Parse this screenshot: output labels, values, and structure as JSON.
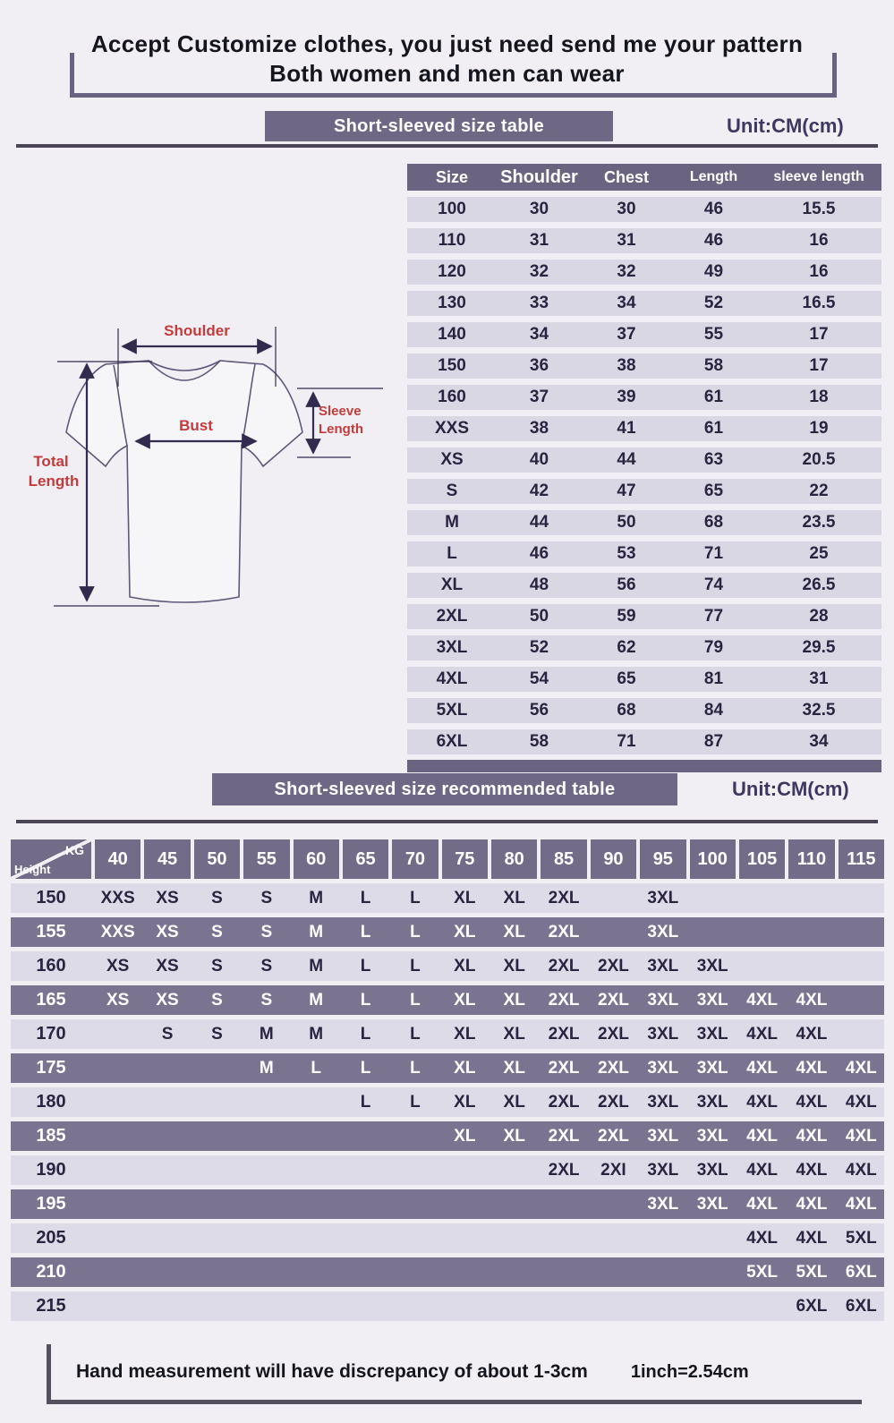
{
  "header": {
    "title_line1": "Accept Customize clothes, you just need send me your pattern",
    "title_line2": "Both women and men can wear"
  },
  "size_table": {
    "banner": "Short-sleeved size  table",
    "unit": "Unit:CM(cm)",
    "headers": [
      "Size",
      "Shoulder",
      "Chest",
      "Length",
      "sleeve length"
    ],
    "rows": [
      [
        "100",
        "30",
        "30",
        "46",
        "15.5"
      ],
      [
        "110",
        "31",
        "31",
        "46",
        "16"
      ],
      [
        "120",
        "32",
        "32",
        "49",
        "16"
      ],
      [
        "130",
        "33",
        "34",
        "52",
        "16.5"
      ],
      [
        "140",
        "34",
        "37",
        "55",
        "17"
      ],
      [
        "150",
        "36",
        "38",
        "58",
        "17"
      ],
      [
        "160",
        "37",
        "39",
        "61",
        "18"
      ],
      [
        "XXS",
        "38",
        "41",
        "61",
        "19"
      ],
      [
        "XS",
        "40",
        "44",
        "63",
        "20.5"
      ],
      [
        "S",
        "42",
        "47",
        "65",
        "22"
      ],
      [
        "M",
        "44",
        "50",
        "68",
        "23.5"
      ],
      [
        "L",
        "46",
        "53",
        "71",
        "25"
      ],
      [
        "XL",
        "48",
        "56",
        "74",
        "26.5"
      ],
      [
        "2XL",
        "50",
        "59",
        "77",
        "28"
      ],
      [
        "3XL",
        "52",
        "62",
        "79",
        "29.5"
      ],
      [
        "4XL",
        "54",
        "65",
        "81",
        "31"
      ],
      [
        "5XL",
        "56",
        "68",
        "84",
        "32.5"
      ],
      [
        "6XL",
        "58",
        "71",
        "87",
        "34"
      ]
    ]
  },
  "diagram": {
    "shoulder_label": "Shoulder",
    "bust_label": "Bust",
    "sleeve_label_1": "Sleeve",
    "sleeve_label_2": "Length",
    "total_label_1": "Total",
    "total_label_2": "Length"
  },
  "recommended_table": {
    "banner": "Short-sleeved size recommended table",
    "unit": "Unit:CM(cm)",
    "corner": {
      "top": "KG",
      "bottom": "Height"
    },
    "weights": [
      "40",
      "45",
      "50",
      "55",
      "60",
      "65",
      "70",
      "75",
      "80",
      "85",
      "90",
      "95",
      "100",
      "105",
      "110",
      "115"
    ],
    "rows": [
      {
        "height": "150",
        "cells": [
          "XXS",
          "XS",
          "S",
          "S",
          "M",
          "L",
          "L",
          "XL",
          "XL",
          "2XL",
          "",
          "3XL",
          "",
          "",
          "",
          ""
        ]
      },
      {
        "height": "155",
        "cells": [
          "XXS",
          "XS",
          "S",
          "S",
          "M",
          "L",
          "L",
          "XL",
          "XL",
          "2XL",
          "",
          "3XL",
          "",
          "",
          "",
          ""
        ]
      },
      {
        "height": "160",
        "cells": [
          "XS",
          "XS",
          "S",
          "S",
          "M",
          "L",
          "L",
          "XL",
          "XL",
          "2XL",
          "2XL",
          "3XL",
          "3XL",
          "",
          "",
          ""
        ]
      },
      {
        "height": "165",
        "cells": [
          "XS",
          "XS",
          "S",
          "S",
          "M",
          "L",
          "L",
          "XL",
          "XL",
          "2XL",
          "2XL",
          "3XL",
          "3XL",
          "4XL",
          "4XL",
          ""
        ]
      },
      {
        "height": "170",
        "cells": [
          "",
          "S",
          "S",
          "M",
          "M",
          "L",
          "L",
          "XL",
          "XL",
          "2XL",
          "2XL",
          "3XL",
          "3XL",
          "4XL",
          "4XL",
          ""
        ]
      },
      {
        "height": "175",
        "cells": [
          "",
          "",
          "",
          "M",
          "L",
          "L",
          "L",
          "XL",
          "XL",
          "2XL",
          "2XL",
          "3XL",
          "3XL",
          "4XL",
          "4XL",
          "4XL"
        ]
      },
      {
        "height": "180",
        "cells": [
          "",
          "",
          "",
          "",
          "",
          "L",
          "L",
          "XL",
          "XL",
          "2XL",
          "2XL",
          "3XL",
          "3XL",
          "4XL",
          "4XL",
          "4XL"
        ]
      },
      {
        "height": "185",
        "cells": [
          "",
          "",
          "",
          "",
          "",
          "",
          "",
          "XL",
          "XL",
          "2XL",
          "2XL",
          "3XL",
          "3XL",
          "4XL",
          "4XL",
          "4XL"
        ]
      },
      {
        "height": "190",
        "cells": [
          "",
          "",
          "",
          "",
          "",
          "",
          "",
          "",
          "",
          "2XL",
          "2XI",
          "3XL",
          "3XL",
          "4XL",
          "4XL",
          "4XL"
        ]
      },
      {
        "height": "195",
        "cells": [
          "",
          "",
          "",
          "",
          "",
          "",
          "",
          "",
          "",
          "",
          "",
          "3XL",
          "3XL",
          "4XL",
          "4XL",
          "4XL"
        ]
      },
      {
        "height": "205",
        "cells": [
          "",
          "",
          "",
          "",
          "",
          "",
          "",
          "",
          "",
          "",
          "",
          "",
          "",
          "4XL",
          "4XL",
          "5XL"
        ]
      },
      {
        "height": "210",
        "cells": [
          "",
          "",
          "",
          "",
          "",
          "",
          "",
          "",
          "",
          "",
          "",
          "",
          "",
          "5XL",
          "5XL",
          "6XL"
        ]
      },
      {
        "height": "215",
        "cells": [
          "",
          "",
          "",
          "",
          "",
          "",
          "",
          "",
          "",
          "",
          "",
          "",
          "",
          "",
          "6XL",
          "6XL"
        ]
      }
    ]
  },
  "footer": {
    "note": "Hand measurement will have discrepancy of about  1-3cm",
    "conversion": "1inch=2.54cm"
  },
  "colors": {
    "background": "#f1eff3",
    "banner_purple": "#6f6885",
    "table_header_purple": "#6b6480",
    "size_row_lavender": "#dad7e4",
    "rec_row_light": "#dedbe8",
    "rec_row_dark": "#7b7490",
    "ink_dark": "#2a2440",
    "unit_text": "#3e3860",
    "diagram_label_red": "#c43b3b",
    "divider": "#4b4556"
  }
}
